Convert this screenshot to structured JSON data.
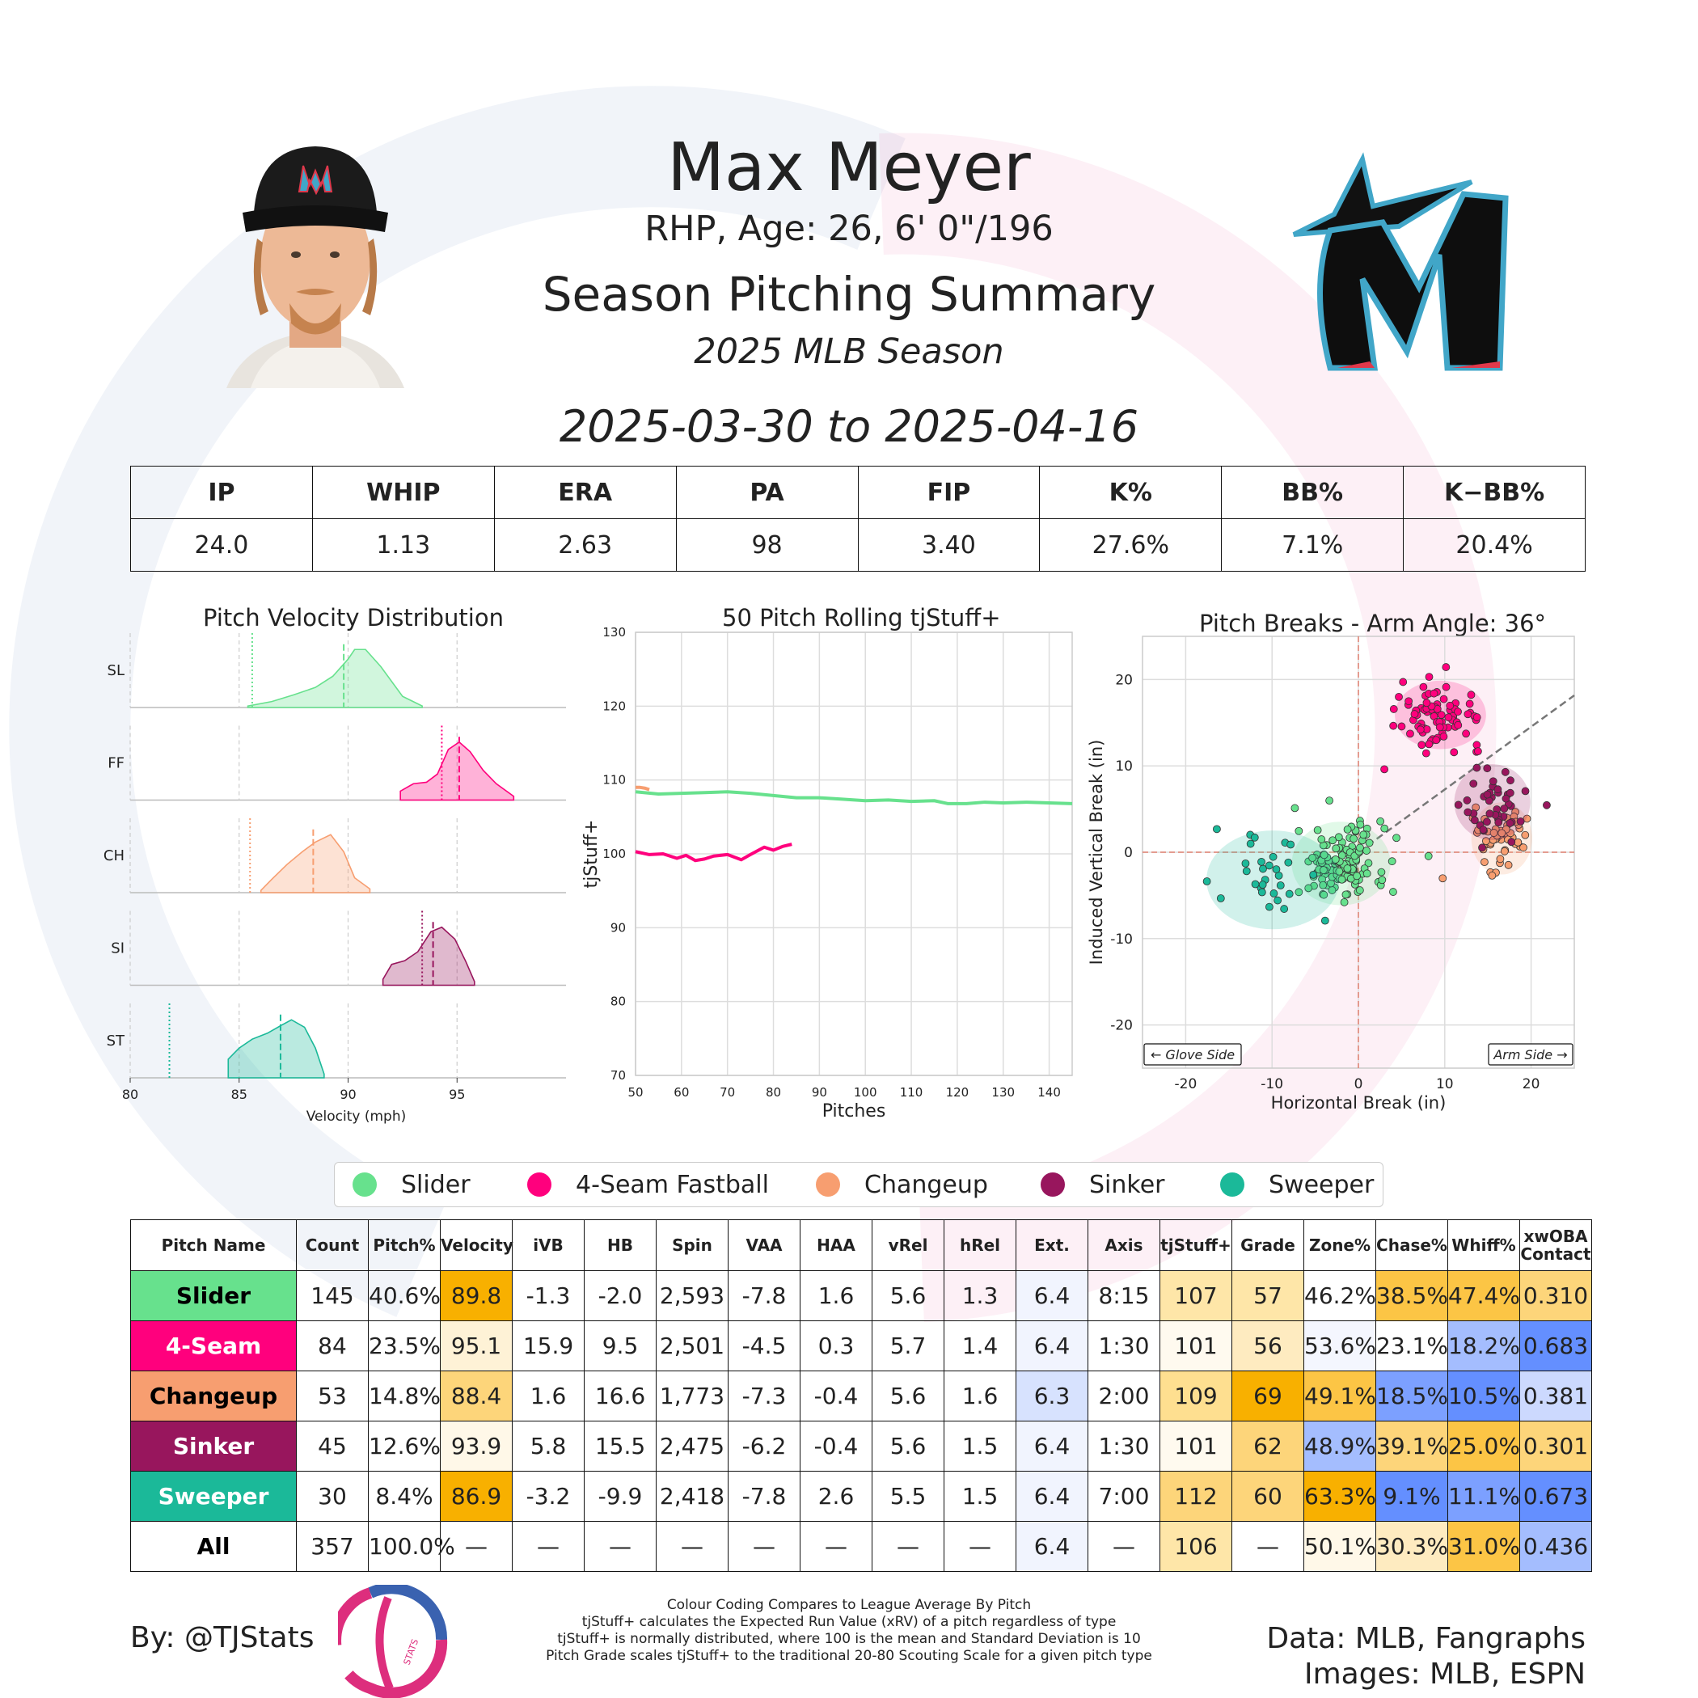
{
  "header": {
    "player_name": "Max Meyer",
    "player_info": "RHP, Age: 26, 6' 0\"/196",
    "report_title": "Season Pitching Summary",
    "season_label": "2025 MLB Season",
    "date_range": "2025-03-30 to 2025-04-16",
    "team_logo_icon": "marlins-logo-icon",
    "headshot_icon": "player-headshot-icon"
  },
  "season_stats": {
    "headers": [
      "IP",
      "WHIP",
      "ERA",
      "PA",
      "FIP",
      "K%",
      "BB%",
      "K−BB%"
    ],
    "values": [
      "24.0",
      "1.13",
      "2.63",
      "98",
      "3.40",
      "27.6%",
      "7.1%",
      "20.4%"
    ]
  },
  "colors": {
    "Slider": "#67E18D",
    "4-Seam Fastball": "#FF007D",
    "Changeup": "#F79E70",
    "Sinker": "#98165D",
    "Sweeper": "#1BB999",
    "grade_high": "#F8B000",
    "grade_low": "#648FFF"
  },
  "chart_data": [
    {
      "type": "area",
      "title": "Pitch Velocity Distribution",
      "xlabel": "Velocity (mph)",
      "ylabel": "",
      "xlim": [
        80,
        100
      ],
      "xticks": [
        80,
        85,
        90,
        95
      ],
      "series": [
        {
          "name": "SL",
          "color": "#67E18D",
          "mean": 89.8,
          "league_avg": 85.6,
          "x": [
            85.4,
            86.5,
            87.5,
            88.5,
            89.3,
            90.0,
            90.3,
            90.8,
            91.5,
            92.5,
            93.4
          ],
          "density": [
            0.02,
            0.08,
            0.17,
            0.27,
            0.42,
            0.65,
            0.78,
            0.78,
            0.55,
            0.15,
            0.02
          ]
        },
        {
          "name": "FF",
          "color": "#FF007D",
          "mean": 95.1,
          "league_avg": 94.3,
          "x": [
            92.4,
            93.0,
            93.6,
            94.1,
            94.6,
            95.1,
            95.6,
            96.2,
            96.8,
            97.6
          ],
          "density": [
            0.12,
            0.22,
            0.24,
            0.35,
            0.68,
            0.78,
            0.65,
            0.4,
            0.22,
            0.05
          ]
        },
        {
          "name": "CH",
          "color": "#F79E70",
          "mean": 88.4,
          "league_avg": 85.5,
          "x": [
            86.0,
            86.5,
            87.2,
            87.9,
            88.5,
            89.2,
            89.8,
            90.3,
            91.0
          ],
          "density": [
            0.03,
            0.18,
            0.38,
            0.55,
            0.68,
            0.78,
            0.55,
            0.2,
            0.05
          ]
        },
        {
          "name": "SI",
          "color": "#98165D",
          "mean": 93.9,
          "league_avg": 93.4,
          "x": [
            91.6,
            92.0,
            92.6,
            93.2,
            93.8,
            94.3,
            94.9,
            95.4,
            95.8
          ],
          "density": [
            0.08,
            0.28,
            0.33,
            0.45,
            0.72,
            0.78,
            0.62,
            0.32,
            0.05
          ]
        },
        {
          "name": "ST",
          "color": "#1BB999",
          "mean": 86.9,
          "league_avg": 81.8,
          "x": [
            84.5,
            85.0,
            85.6,
            86.3,
            86.9,
            87.4,
            88.0,
            88.5,
            88.9
          ],
          "density": [
            0.25,
            0.4,
            0.52,
            0.6,
            0.7,
            0.78,
            0.68,
            0.4,
            0.05
          ]
        }
      ]
    },
    {
      "type": "line",
      "title": "50 Pitch Rolling tjStuff+",
      "xlabel": "Pitches",
      "ylabel": "tjStuff+",
      "xlim": [
        50,
        145
      ],
      "ylim": [
        70,
        130
      ],
      "xticks": [
        50,
        60,
        70,
        80,
        90,
        100,
        110,
        120,
        130,
        140
      ],
      "yticks": [
        70,
        80,
        90,
        100,
        110,
        120,
        130
      ],
      "series": [
        {
          "name": "Slider",
          "color": "#67E18D",
          "x": [
            50,
            55,
            60,
            65,
            70,
            75,
            80,
            85,
            90,
            95,
            100,
            105,
            110,
            115,
            118,
            122,
            126,
            130,
            135,
            140,
            145
          ],
          "y": [
            108.4,
            108.1,
            108.2,
            108.3,
            108.4,
            108.2,
            107.9,
            107.6,
            107.6,
            107.4,
            107.2,
            107.3,
            107.1,
            107.2,
            106.8,
            106.8,
            107.0,
            106.9,
            107.0,
            106.9,
            106.8
          ]
        },
        {
          "name": "4-Seam Fastball",
          "color": "#FF007D",
          "x": [
            50,
            53,
            56,
            59,
            61,
            63,
            65,
            67,
            70,
            73,
            75,
            78,
            80,
            82,
            84
          ],
          "y": [
            100.3,
            99.9,
            100.0,
            99.4,
            99.8,
            99.1,
            99.3,
            99.7,
            99.9,
            99.2,
            99.9,
            100.9,
            100.5,
            101.0,
            101.3
          ]
        },
        {
          "name": "Changeup",
          "color": "#F79E70",
          "x": [
            50,
            51,
            52,
            53
          ],
          "y": [
            109.0,
            109.0,
            108.9,
            108.7
          ]
        }
      ]
    },
    {
      "type": "scatter",
      "title": "Pitch Breaks - Arm Angle: 36°",
      "xlabel": "Horizontal Break (in)",
      "ylabel": "Induced Vertical Break (in)",
      "xlim": [
        -25,
        25
      ],
      "ylim": [
        -25,
        25
      ],
      "xticks": [
        -20,
        -10,
        0,
        10,
        20
      ],
      "yticks": [
        -20,
        -10,
        0,
        10,
        20
      ],
      "annotations": [
        "← Glove Side",
        "Arm Side →"
      ],
      "arm_angle_deg": 36,
      "series": [
        {
          "name": "Slider",
          "color": "#67E18D",
          "center": [
            -2.0,
            -1.3
          ],
          "spread": [
            2.6,
            2.2
          ],
          "count": 145
        },
        {
          "name": "4-Seam Fastball",
          "color": "#FF007D",
          "center": [
            9.5,
            15.9
          ],
          "spread": [
            2.4,
            1.8
          ],
          "count": 84
        },
        {
          "name": "Changeup",
          "color": "#F79E70",
          "center": [
            16.6,
            1.6
          ],
          "spread": [
            1.6,
            1.9
          ],
          "count": 53
        },
        {
          "name": "Sinker",
          "color": "#98165D",
          "center": [
            15.5,
            5.8
          ],
          "spread": [
            2.0,
            2.0
          ],
          "count": 45
        },
        {
          "name": "Sweeper",
          "color": "#1BB999",
          "center": [
            -9.9,
            -3.2
          ],
          "spread": [
            3.5,
            2.6
          ],
          "count": 30
        }
      ]
    }
  ],
  "legend": [
    "Slider",
    "4-Seam Fastball",
    "Changeup",
    "Sinker",
    "Sweeper"
  ],
  "pitch_table": {
    "headers": [
      "Pitch Name",
      "Count",
      "Pitch%",
      "Velocity",
      "iVB",
      "HB",
      "Spin",
      "VAA",
      "HAA",
      "vRel",
      "hRel",
      "Ext.",
      "Axis",
      "tjStuff+",
      "Grade",
      "Zone%",
      "Chase%",
      "Whiff%",
      "xwOBA Contact"
    ],
    "rows": [
      {
        "name": "Slider",
        "name_bg": "#67E18D",
        "name_fg": "#000000",
        "cells": [
          "145",
          "40.6%",
          "89.8",
          "-1.3",
          "-2.0",
          "2,593",
          "-7.8",
          "1.6",
          "5.6",
          "1.3",
          "6.4",
          "8:15",
          "107",
          "57",
          "46.2%",
          "38.5%",
          "47.4%",
          "0.310"
        ],
        "bg": [
          "",
          "",
          "#F8B000",
          "",
          "",
          "",
          "",
          "",
          "",
          "",
          "#F1F4FE",
          "",
          "#FEE6A8",
          "#FEE6A8",
          "#FFFFFF",
          "#FCC545",
          "#FCC545",
          "#FDD57A"
        ]
      },
      {
        "name": "4-Seam",
        "name_bg": "#FF007D",
        "name_fg": "#FFFFFF",
        "cells": [
          "84",
          "23.5%",
          "95.1",
          "15.9",
          "9.5",
          "2,501",
          "-4.5",
          "0.3",
          "5.7",
          "1.4",
          "6.4",
          "1:30",
          "101",
          "56",
          "53.6%",
          "23.1%",
          "18.2%",
          "0.683"
        ],
        "bg": [
          "",
          "",
          "#FEF2D6",
          "",
          "",
          "",
          "",
          "",
          "",
          "",
          "#F1F4FE",
          "",
          "#FFFAEF",
          "#FEEBC0",
          "#F4F6FE",
          "#FFFFFF",
          "#A4BDFE",
          "#648FFF"
        ]
      },
      {
        "name": "Changeup",
        "name_bg": "#F79E70",
        "name_fg": "#000000",
        "cells": [
          "53",
          "14.8%",
          "88.4",
          "1.6",
          "16.6",
          "1,773",
          "-7.3",
          "-0.4",
          "5.6",
          "1.6",
          "6.3",
          "2:00",
          "109",
          "69",
          "49.1%",
          "18.5%",
          "10.5%",
          "0.381"
        ],
        "bg": [
          "",
          "",
          "#FDD57A",
          "",
          "",
          "",
          "",
          "",
          "",
          "",
          "#D7E2FE",
          "",
          "#FEDF90",
          "#F8B000",
          "#FCC545",
          "#7CA0FF",
          "#648FFF",
          "#CCD9FE"
        ]
      },
      {
        "name": "Sinker",
        "name_bg": "#98165D",
        "name_fg": "#FFFFFF",
        "cells": [
          "45",
          "12.6%",
          "93.9",
          "5.8",
          "15.5",
          "2,475",
          "-6.2",
          "-0.4",
          "5.6",
          "1.5",
          "6.4",
          "1:30",
          "101",
          "62",
          "48.9%",
          "39.1%",
          "25.0%",
          "0.301"
        ],
        "bg": [
          "",
          "",
          "#FFF8E8",
          "",
          "",
          "",
          "",
          "",
          "",
          "",
          "#F1F4FE",
          "",
          "#FFFAEF",
          "#FDD57A",
          "#A4BDFE",
          "#FDD57A",
          "#FCC545",
          "#FDD57A"
        ]
      },
      {
        "name": "Sweeper",
        "name_bg": "#1BB999",
        "name_fg": "#FFFFFF",
        "cells": [
          "30",
          "8.4%",
          "86.9",
          "-3.2",
          "-9.9",
          "2,418",
          "-7.8",
          "2.6",
          "5.5",
          "1.5",
          "6.4",
          "7:00",
          "112",
          "60",
          "63.3%",
          "9.1%",
          "11.1%",
          "0.673"
        ],
        "bg": [
          "",
          "",
          "#F8B000",
          "",
          "",
          "",
          "",
          "",
          "",
          "",
          "#F1F4FE",
          "",
          "#FDD57A",
          "#FDD57A",
          "#F8B000",
          "#648FFF",
          "#7CA0FF",
          "#648FFF"
        ]
      },
      {
        "name": "All",
        "name_bg": "#FFFFFF",
        "name_fg": "#000000",
        "cells": [
          "357",
          "100.0%",
          "—",
          "—",
          "—",
          "—",
          "—",
          "—",
          "—",
          "—",
          "6.4",
          "—",
          "106",
          "—",
          "50.1%",
          "30.3%",
          "31.0%",
          "0.436"
        ],
        "bg": [
          "",
          "",
          "",
          "",
          "",
          "",
          "",
          "",
          "",
          "",
          "#F1F4FE",
          "",
          "#FEE6A8",
          "",
          "#FFF8E8",
          "#FEEBC0",
          "#FCC545",
          "#A4BDFE"
        ]
      }
    ]
  },
  "footer": {
    "by": "By: @TJStats",
    "logo_icon": "tjstats-logo-icon",
    "logo_text": "STATS",
    "notes": [
      "Colour Coding Compares to League Average By Pitch",
      "tjStuff+ calculates the Expected Run Value (xRV) of a pitch regardless of type",
      "tjStuff+ is normally distributed, where 100 is the mean and Standard Deviation is 10",
      "Pitch Grade scales tjStuff+ to the traditional 20-80 Scouting Scale for a given pitch type"
    ],
    "data_source": "Data: MLB, Fangraphs",
    "image_source": "Images: MLB, ESPN"
  }
}
